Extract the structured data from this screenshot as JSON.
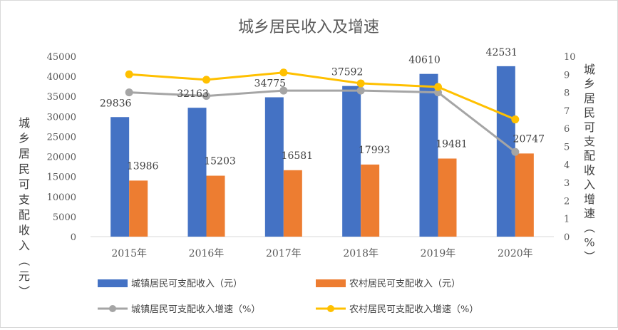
{
  "chart_data": {
    "type": "bar",
    "title": "城乡居民收入及增速",
    "categories": [
      "2015年",
      "2016年",
      "2017年",
      "2018年",
      "2019年",
      "2020年"
    ],
    "ylabel": "城乡居民可支配收入（元）",
    "y2label": "城乡居民可支配收入增速（%）",
    "ylim": [
      0,
      45000
    ],
    "yticks": [
      "0",
      "5000",
      "10000",
      "15000",
      "20000",
      "25000",
      "30000",
      "35000",
      "40000",
      "45000"
    ],
    "y2lim": [
      0,
      10
    ],
    "y2ticks": [
      "0",
      "1",
      "2",
      "3",
      "4",
      "5",
      "6",
      "7",
      "8",
      "9",
      "10"
    ],
    "grid": false,
    "legend_position": "bottom",
    "series": [
      {
        "name": "城镇居民可支配收入（元）",
        "kind": "bar",
        "axis": "left",
        "color": "#4472c4",
        "values": [
          29836,
          32163,
          34775,
          37592,
          40610,
          42531
        ],
        "labels": [
          "29836",
          "32163",
          "34775",
          "37592",
          "40610",
          "42531"
        ]
      },
      {
        "name": "农村居民可支配收入（元）",
        "kind": "bar",
        "axis": "left",
        "color": "#ed7d31",
        "values": [
          13986,
          15203,
          16581,
          17993,
          19481,
          20747
        ],
        "labels": [
          "13986",
          "15203",
          "16581",
          "17993",
          "19481",
          "20747"
        ]
      },
      {
        "name": "城镇居民可支配收入增速（%）",
        "kind": "line",
        "axis": "right",
        "color": "#a5a5a5",
        "values": [
          8.0,
          7.8,
          8.1,
          8.1,
          8.0,
          4.7
        ]
      },
      {
        "name": "农村居民可支配收入增速（%）",
        "kind": "line",
        "axis": "right",
        "color": "#ffc000",
        "values": [
          9.0,
          8.7,
          9.1,
          8.5,
          8.3,
          6.5
        ]
      }
    ]
  }
}
